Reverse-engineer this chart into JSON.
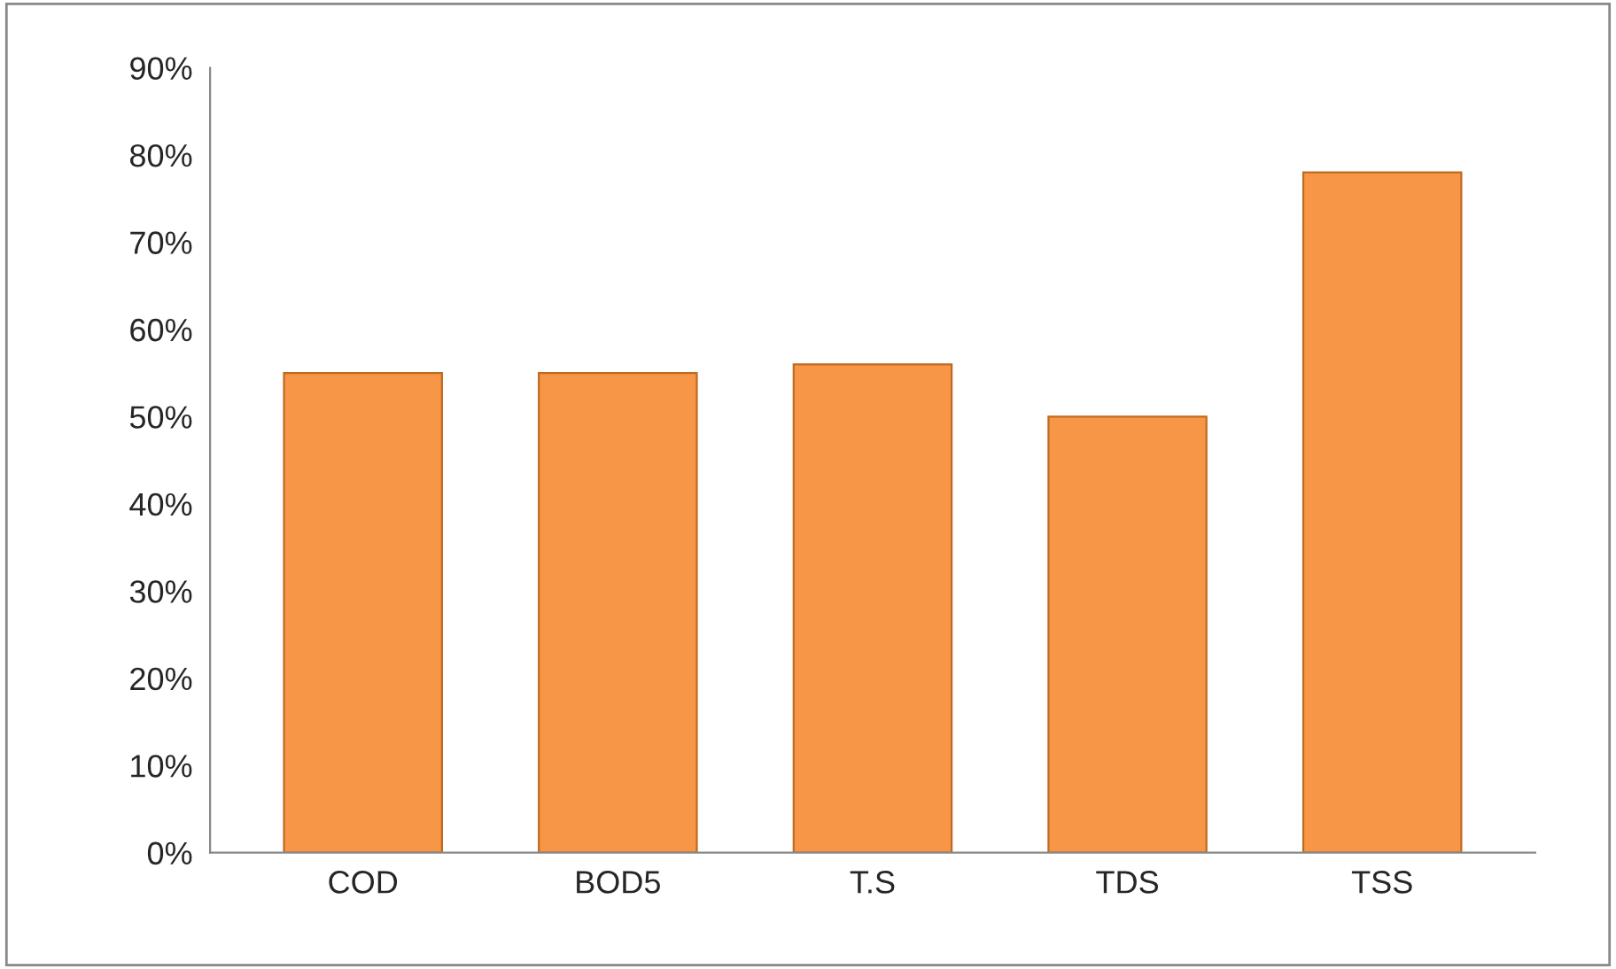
{
  "chart_data": {
    "type": "bar",
    "categories": [
      "COD",
      "BOD5",
      "T.S",
      "TDS",
      "TSS"
    ],
    "values": [
      55,
      55,
      56,
      50,
      78
    ],
    "color": "#f79646",
    "ylim": [
      0,
      90
    ],
    "yticks": [
      {
        "value": 0,
        "label": "0%"
      },
      {
        "value": 10,
        "label": "10%"
      },
      {
        "value": 20,
        "label": "20%"
      },
      {
        "value": 30,
        "label": "30%"
      },
      {
        "value": 40,
        "label": "40%"
      },
      {
        "value": 50,
        "label": "50%"
      },
      {
        "value": 60,
        "label": "60%"
      },
      {
        "value": 70,
        "label": "70%"
      },
      {
        "value": 80,
        "label": "80%"
      },
      {
        "value": 90,
        "label": "90%"
      }
    ],
    "grid": false
  }
}
